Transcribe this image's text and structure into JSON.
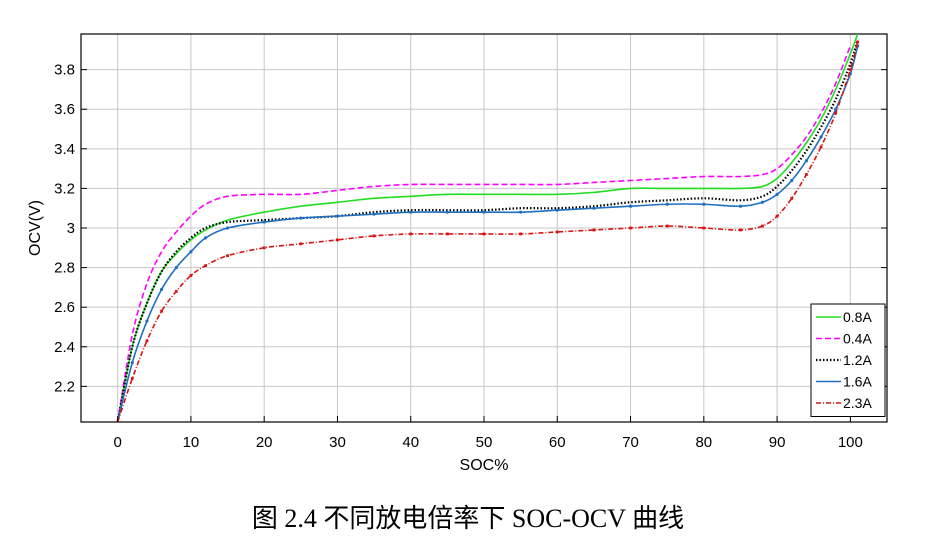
{
  "caption": "图 2.4  不同放电倍率下 SOC-OCV 曲线",
  "chart_data": {
    "type": "line",
    "xlabel": "SOC%",
    "ylabel": "OCV(V)",
    "xlim": [
      -5,
      105
    ],
    "ylim": [
      2.02,
      3.98
    ],
    "xticks": [
      0,
      10,
      20,
      30,
      40,
      50,
      60,
      70,
      80,
      90,
      100
    ],
    "yticks": [
      2.2,
      2.4,
      2.6,
      2.8,
      3.0,
      3.2,
      3.4,
      3.6,
      3.8
    ],
    "ytick_labels": [
      "2.2",
      "2.4",
      "2.6",
      "2.8",
      "3",
      "3.2",
      "3.4",
      "3.6",
      "3.8"
    ],
    "grid": true,
    "legend_position": "bottom-right",
    "series": [
      {
        "name": "0.8A",
        "color": "#22dd22",
        "style": "solid",
        "x": [
          0,
          2,
          4,
          6,
          8,
          10,
          12,
          15,
          20,
          25,
          30,
          35,
          40,
          45,
          50,
          55,
          60,
          65,
          70,
          75,
          80,
          85,
          88,
          90,
          92,
          94,
          96,
          98,
          100,
          101
        ],
        "y": [
          2.02,
          2.4,
          2.62,
          2.78,
          2.87,
          2.94,
          2.99,
          3.04,
          3.08,
          3.11,
          3.13,
          3.15,
          3.16,
          3.17,
          3.17,
          3.17,
          3.17,
          3.18,
          3.2,
          3.2,
          3.2,
          3.2,
          3.21,
          3.25,
          3.33,
          3.43,
          3.55,
          3.7,
          3.88,
          3.98
        ]
      },
      {
        "name": "0.4A",
        "color": "#ff00ff",
        "style": "dashed",
        "x": [
          0,
          2,
          4,
          6,
          8,
          10,
          12,
          15,
          20,
          25,
          30,
          35,
          40,
          45,
          50,
          55,
          60,
          65,
          70,
          75,
          80,
          85,
          88,
          90,
          92,
          94,
          96,
          98,
          100
        ],
        "y": [
          2.02,
          2.46,
          2.72,
          2.88,
          2.98,
          3.06,
          3.12,
          3.16,
          3.17,
          3.17,
          3.19,
          3.21,
          3.22,
          3.22,
          3.22,
          3.22,
          3.22,
          3.23,
          3.24,
          3.25,
          3.26,
          3.26,
          3.27,
          3.3,
          3.37,
          3.46,
          3.58,
          3.73,
          3.92
        ]
      },
      {
        "name": "1.2A",
        "color": "#000000",
        "style": "dotted",
        "x": [
          0,
          2,
          4,
          6,
          8,
          10,
          12,
          15,
          20,
          25,
          30,
          35,
          40,
          45,
          50,
          55,
          60,
          65,
          70,
          75,
          80,
          85,
          88,
          90,
          92,
          94,
          96,
          98,
          100,
          101
        ],
        "y": [
          2.02,
          2.4,
          2.62,
          2.78,
          2.88,
          2.95,
          3.0,
          3.03,
          3.04,
          3.05,
          3.06,
          3.08,
          3.09,
          3.09,
          3.09,
          3.1,
          3.1,
          3.11,
          3.13,
          3.14,
          3.15,
          3.14,
          3.16,
          3.21,
          3.29,
          3.39,
          3.51,
          3.65,
          3.83,
          3.95
        ]
      },
      {
        "name": "1.6A",
        "color": "#1f6fbf",
        "style": "solid-markers",
        "x": [
          0,
          2,
          4,
          6,
          8,
          10,
          12,
          15,
          20,
          25,
          30,
          35,
          40,
          45,
          50,
          55,
          60,
          65,
          70,
          75,
          80,
          85,
          88,
          90,
          92,
          94,
          96,
          98,
          100,
          101
        ],
        "y": [
          2.02,
          2.32,
          2.53,
          2.69,
          2.8,
          2.88,
          2.95,
          3.0,
          3.03,
          3.05,
          3.06,
          3.07,
          3.08,
          3.08,
          3.08,
          3.08,
          3.09,
          3.1,
          3.11,
          3.12,
          3.12,
          3.11,
          3.13,
          3.17,
          3.24,
          3.34,
          3.46,
          3.6,
          3.78,
          3.92
        ]
      },
      {
        "name": "2.3A",
        "color": "#dd1111",
        "style": "dashdot-markers",
        "x": [
          0,
          2,
          4,
          6,
          8,
          10,
          12,
          15,
          20,
          25,
          30,
          35,
          40,
          45,
          50,
          55,
          60,
          65,
          70,
          75,
          80,
          85,
          88,
          90,
          92,
          94,
          96,
          98,
          100,
          101
        ],
        "y": [
          2.02,
          2.24,
          2.43,
          2.58,
          2.68,
          2.76,
          2.81,
          2.86,
          2.9,
          2.92,
          2.94,
          2.96,
          2.97,
          2.97,
          2.97,
          2.97,
          2.98,
          2.99,
          3.0,
          3.01,
          3.0,
          2.99,
          3.01,
          3.06,
          3.15,
          3.27,
          3.41,
          3.58,
          3.8,
          3.94
        ]
      }
    ]
  }
}
